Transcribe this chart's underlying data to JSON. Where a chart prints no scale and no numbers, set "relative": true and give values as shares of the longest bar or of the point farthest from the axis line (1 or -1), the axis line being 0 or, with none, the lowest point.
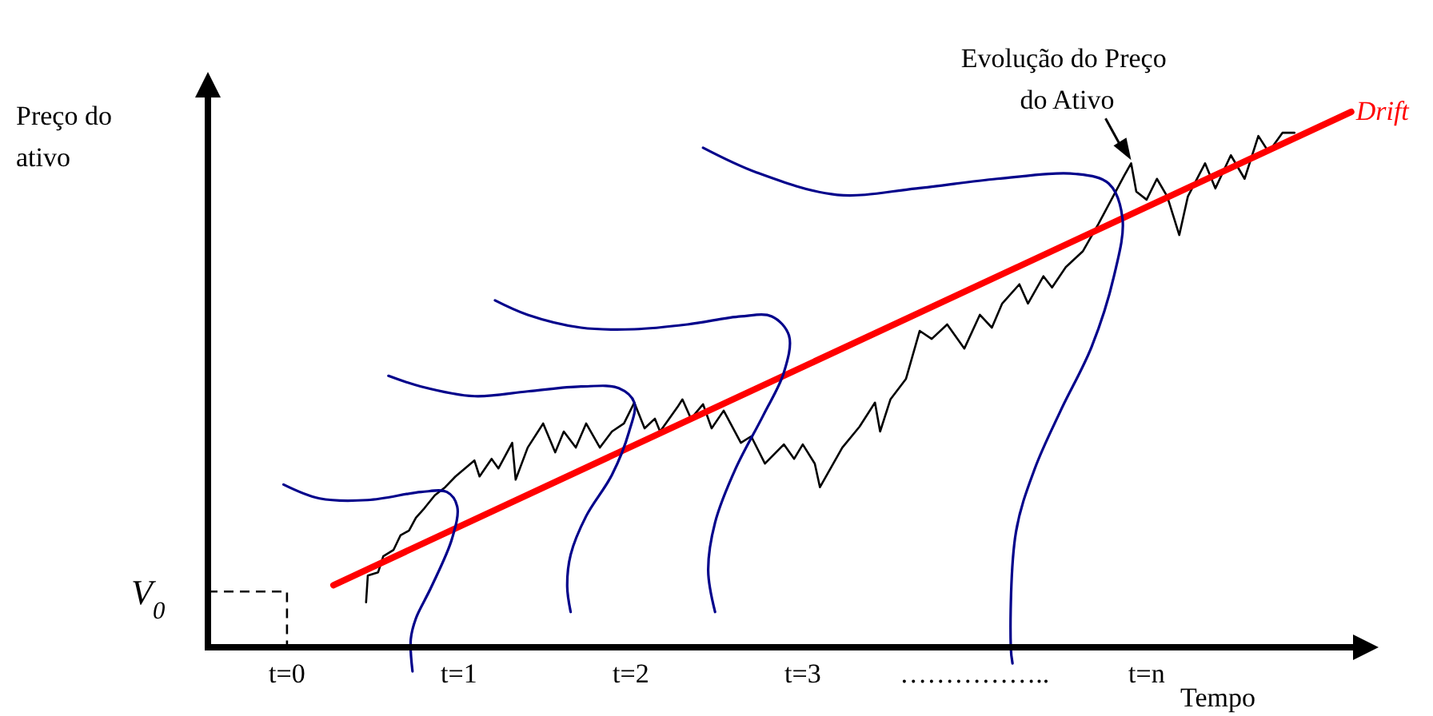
{
  "chart_data": {
    "type": "line",
    "relative": true,
    "xlabel": "Tempo",
    "ylabel": "Preço do ativo",
    "xlim": [
      -0.46,
      6.21
    ],
    "xticks": [
      {
        "value": 0,
        "label": "t=0"
      },
      {
        "value": 1,
        "label": "t=1"
      },
      {
        "value": 2,
        "label": "t=2"
      },
      {
        "value": 3,
        "label": "t=3"
      },
      {
        "value": 4,
        "label": "…………….."
      },
      {
        "value": 5,
        "label": "t=n"
      }
    ],
    "ref_lines": [
      {
        "axis": "y",
        "value": 0.104,
        "label": "V$_{0}$",
        "line_style": "dashed"
      }
    ],
    "annotations": [
      {
        "text": "Evolução do Preço do Ativo",
        "x": 4.91,
        "y": 0.904
      }
    ],
    "series": [
      {
        "color": "#000000",
        "x": [
          0.46,
          0.47,
          0.53,
          0.56,
          0.62,
          0.66,
          0.71,
          0.75,
          0.8,
          0.86,
          0.92,
          0.98,
          1.09,
          1.12,
          1.19,
          1.23,
          1.31,
          1.33,
          1.4,
          1.49,
          1.56,
          1.61,
          1.68,
          1.74,
          1.82,
          1.89,
          1.96,
          2.02,
          2.08,
          2.14,
          2.17,
          2.27,
          2.3,
          2.35,
          2.42,
          2.47,
          2.54,
          2.64,
          2.7,
          2.78,
          2.89,
          2.95,
          3.0,
          3.07,
          3.1,
          3.23,
          3.33,
          3.42,
          3.45,
          3.51,
          3.6,
          3.68,
          3.75,
          3.84,
          3.94,
          4.03,
          4.1,
          4.16,
          4.26,
          4.31,
          4.4,
          4.45,
          4.53,
          4.63,
          4.72,
          4.87,
          4.91,
          4.94,
          5.0,
          5.06,
          5.12,
          5.19,
          5.24,
          5.34,
          5.4,
          5.49,
          5.57,
          5.65,
          5.71,
          5.79,
          5.86
        ],
        "values": [
          0.084,
          0.134,
          0.14,
          0.17,
          0.182,
          0.209,
          0.218,
          0.242,
          0.26,
          0.284,
          0.299,
          0.319,
          0.349,
          0.319,
          0.352,
          0.334,
          0.382,
          0.313,
          0.373,
          0.418,
          0.364,
          0.403,
          0.373,
          0.418,
          0.373,
          0.403,
          0.418,
          0.457,
          0.409,
          0.427,
          0.403,
          0.448,
          0.463,
          0.427,
          0.454,
          0.409,
          0.442,
          0.382,
          0.394,
          0.343,
          0.379,
          0.352,
          0.379,
          0.343,
          0.299,
          0.373,
          0.412,
          0.457,
          0.403,
          0.463,
          0.501,
          0.591,
          0.576,
          0.603,
          0.558,
          0.621,
          0.597,
          0.642,
          0.678,
          0.642,
          0.693,
          0.672,
          0.71,
          0.74,
          0.791,
          0.881,
          0.904,
          0.851,
          0.836,
          0.875,
          0.842,
          0.77,
          0.842,
          0.904,
          0.857,
          0.919,
          0.875,
          0.955,
          0.925,
          0.961,
          0.961
        ]
      },
      {
        "name": "Drift",
        "color": "#ff0000",
        "x": [
          0.27,
          6.19
        ],
        "values": [
          0.116,
          1.0
        ]
      },
      {
        "color": "#00008b",
        "x": [
          -0.02,
          0.19,
          0.47,
          0.78,
          0.93,
          0.99,
          0.96,
          0.84,
          0.75,
          0.72,
          0.73
        ],
        "values": [
          0.304,
          0.278,
          0.275,
          0.29,
          0.29,
          0.263,
          0.203,
          0.113,
          0.054,
          0.015,
          -0.045
        ]
      },
      {
        "color": "#00008b",
        "x": [
          0.59,
          0.78,
          1.09,
          1.4,
          1.71,
          1.93,
          2.02,
          1.99,
          1.89,
          1.74,
          1.65,
          1.63,
          1.65
        ],
        "values": [
          0.507,
          0.487,
          0.469,
          0.478,
          0.487,
          0.484,
          0.457,
          0.403,
          0.322,
          0.245,
          0.173,
          0.113,
          0.066
        ]
      },
      {
        "color": "#00008b",
        "x": [
          1.21,
          1.4,
          1.71,
          2.02,
          2.33,
          2.64,
          2.82,
          2.92,
          2.89,
          2.77,
          2.61,
          2.49,
          2.45,
          2.49
        ],
        "values": [
          0.648,
          0.621,
          0.597,
          0.594,
          0.603,
          0.618,
          0.618,
          0.582,
          0.513,
          0.433,
          0.334,
          0.233,
          0.143,
          0.066
        ]
      },
      {
        "color": "#00008b",
        "x": [
          2.42,
          2.73,
          3.2,
          3.66,
          4.13,
          4.59,
          4.78,
          4.86,
          4.81,
          4.68,
          4.5,
          4.35,
          4.24,
          4.21,
          4.22
        ],
        "values": [
          0.933,
          0.887,
          0.845,
          0.857,
          0.875,
          0.884,
          0.866,
          0.8,
          0.693,
          0.561,
          0.442,
          0.334,
          0.215,
          0.0,
          -0.03
        ]
      }
    ]
  }
}
